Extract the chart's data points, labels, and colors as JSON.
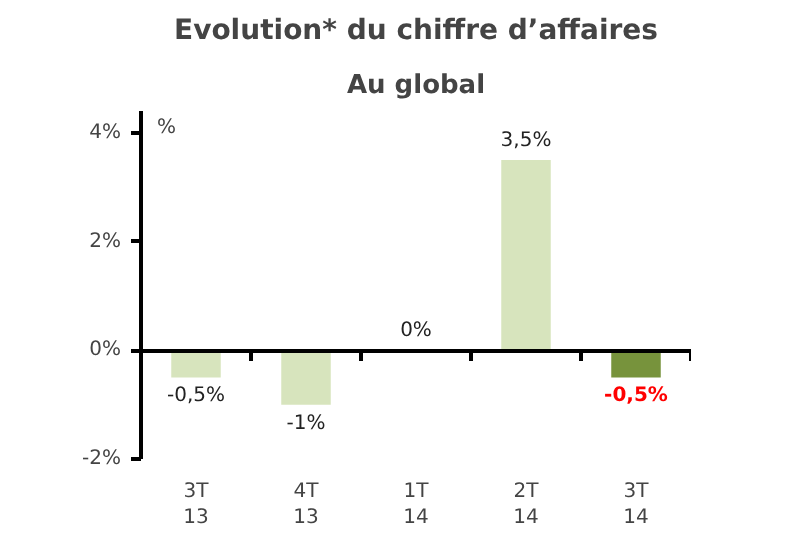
{
  "chart_data": {
    "type": "bar",
    "title": "Evolution* du chiffre d’affaires",
    "subtitle": "Au global",
    "ylabel": "%",
    "categories": [
      "3T\n13",
      "4T\n13",
      "1T\n14",
      "2T\n14",
      "3T\n14"
    ],
    "values": [
      -0.5,
      -1,
      0,
      3.5,
      -0.5
    ],
    "colors": [
      "#d7e4bd",
      "#d7e4bd",
      "#d7e4bd",
      "#d7e4bd",
      "#77933c"
    ],
    "value_labels": [
      "-0,5%",
      "-1%",
      "0%",
      "3,5%",
      "-0,5%"
    ],
    "ylim": [
      -2,
      4.4
    ],
    "yticks": [
      {
        "value": -2,
        "label": "-2%"
      },
      {
        "value": 0,
        "label": "0%"
      },
      {
        "value": 2,
        "label": "2%"
      },
      {
        "value": 4,
        "label": "4%"
      }
    ]
  }
}
